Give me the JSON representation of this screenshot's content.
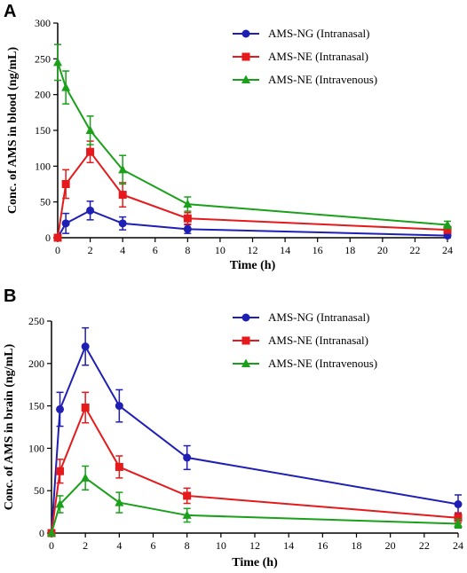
{
  "figure": {
    "panels": [
      "A",
      "B"
    ]
  },
  "chart_data": [
    {
      "type": "line",
      "panel_label": "A",
      "xlabel": "Time (h)",
      "ylabel": "Conc. of AMS in blood (ng/mL)",
      "xlim": [
        0,
        24
      ],
      "ylim": [
        0,
        300
      ],
      "xticks": [
        0,
        2,
        4,
        6,
        8,
        10,
        12,
        14,
        16,
        18,
        20,
        22,
        24
      ],
      "yticks": [
        0,
        50,
        100,
        150,
        200,
        250,
        300
      ],
      "grid": false,
      "legend_position": "top-right",
      "x": [
        0,
        0.5,
        2,
        4,
        8,
        24
      ],
      "series": [
        {
          "name": "AMS-NG (Intranasal)",
          "color": "#1f1fb4",
          "marker": "circle",
          "values": [
            0,
            20,
            38,
            20,
            12,
            3
          ],
          "errors": [
            0,
            14,
            13,
            9,
            6,
            3
          ]
        },
        {
          "name": "AMS-NE (Intranasal)",
          "color": "#e41a1c",
          "marker": "square",
          "values": [
            0,
            75,
            120,
            60,
            27,
            11
          ],
          "errors": [
            0,
            20,
            15,
            17,
            8,
            4
          ]
        },
        {
          "name": "AMS-NE (Intravenous)",
          "color": "#1aa01a",
          "marker": "triangle",
          "values": [
            245,
            210,
            150,
            95,
            47,
            18
          ],
          "errors": [
            25,
            23,
            20,
            20,
            10,
            5
          ]
        }
      ]
    },
    {
      "type": "line",
      "panel_label": "B",
      "xlabel": "Time (h)",
      "ylabel": "Conc. of AMS in brain (ng/mL)",
      "xlim": [
        0,
        24
      ],
      "ylim": [
        0,
        250
      ],
      "xticks": [
        0,
        2,
        4,
        6,
        8,
        10,
        12,
        14,
        16,
        18,
        20,
        22,
        24
      ],
      "yticks": [
        0,
        50,
        100,
        150,
        200,
        250
      ],
      "grid": false,
      "legend_position": "top-right",
      "x": [
        0,
        0.5,
        2,
        4,
        8,
        24
      ],
      "series": [
        {
          "name": "AMS-NG (Intranasal)",
          "color": "#1f1fb4",
          "marker": "circle",
          "values": [
            0,
            146,
            220,
            150,
            89,
            34
          ],
          "errors": [
            0,
            20,
            22,
            19,
            14,
            11
          ]
        },
        {
          "name": "AMS-NE (Intranasal)",
          "color": "#e41a1c",
          "marker": "square",
          "values": [
            0,
            73,
            148,
            78,
            44,
            18
          ],
          "errors": [
            0,
            14,
            18,
            13,
            9,
            6
          ]
        },
        {
          "name": "AMS-NE (Intravenous)",
          "color": "#1aa01a",
          "marker": "triangle",
          "values": [
            0,
            34,
            65,
            36,
            21,
            11
          ],
          "errors": [
            0,
            10,
            14,
            12,
            8,
            5
          ]
        }
      ]
    }
  ]
}
